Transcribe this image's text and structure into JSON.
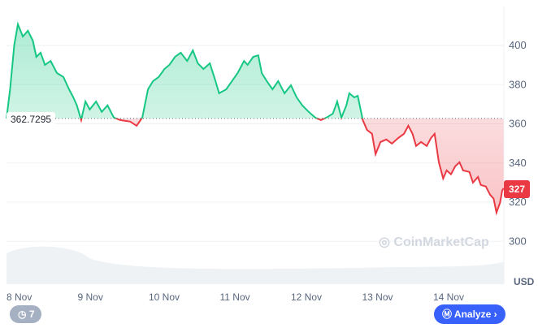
{
  "chart_data": {
    "type": "area",
    "baseline": 362.7295,
    "baseline_label": "362.7295",
    "last_price_label": "327",
    "currency": "USD",
    "ylim": [
      290,
      415
    ],
    "y_ticks": [
      "400",
      "380",
      "360",
      "340",
      "320",
      "300"
    ],
    "y_tick_values": [
      400,
      380,
      360,
      340,
      320,
      300
    ],
    "x_ticks": [
      "8 Nov",
      "9 Nov",
      "10 Nov",
      "11 Nov",
      "12 Nov",
      "13 Nov",
      "14 Nov"
    ],
    "x_tick_values": [
      8,
      9,
      10,
      11,
      12,
      13,
      14
    ],
    "xlim": [
      7.84,
      14.84
    ],
    "grid": true,
    "colors": {
      "up": "#16c784",
      "down": "#ea3943",
      "volume": "#eff2f5"
    },
    "series": [
      {
        "x": [
          7.84,
          7.89,
          7.95,
          8.0,
          8.07,
          8.14,
          8.21,
          8.26,
          8.32,
          8.38,
          8.46,
          8.55,
          8.64,
          8.72,
          8.78,
          8.83,
          8.89,
          8.95,
          9.01,
          9.1,
          9.18,
          9.26,
          9.35,
          9.44,
          9.58,
          9.67,
          9.75,
          9.83,
          9.9,
          9.98,
          10.06,
          10.13,
          10.21,
          10.29,
          10.38,
          10.46,
          10.53,
          10.61,
          10.7,
          10.78,
          10.83,
          10.93,
          11.01,
          11.09,
          11.18,
          11.23,
          11.31,
          11.38,
          11.43,
          11.5,
          11.58,
          11.66,
          11.75,
          11.84,
          11.92,
          12.0,
          12.09,
          12.18,
          12.26,
          12.34,
          12.43,
          12.49,
          12.55,
          12.62,
          12.66,
          12.73,
          12.78,
          12.85,
          12.91,
          12.98,
          13.03,
          13.1,
          13.18,
          13.26,
          13.35,
          13.43,
          13.49,
          13.55,
          13.6,
          13.67,
          13.75,
          13.81,
          13.86,
          13.92,
          13.98,
          14.03,
          14.09,
          14.15,
          14.21,
          14.26,
          14.35,
          14.4,
          14.47,
          14.51,
          14.58,
          14.64,
          14.69,
          14.73,
          14.78,
          14.81,
          14.83
        ],
        "y": [
          362.7,
          377.6,
          400.4,
          410.8,
          404.6,
          407.5,
          402.5,
          394.2,
          396.3,
          390.1,
          392.1,
          385.9,
          383.9,
          377.6,
          373.5,
          369.4,
          361.9,
          371.4,
          367.3,
          371.4,
          366.1,
          369.4,
          363.2,
          361.9,
          361.1,
          359.0,
          363.2,
          377.6,
          381.8,
          383.9,
          388.0,
          390.1,
          394.2,
          396.3,
          392.1,
          397.5,
          390.9,
          388.0,
          390.9,
          381.8,
          375.6,
          377.6,
          381.8,
          385.9,
          392.1,
          390.1,
          394.2,
          395.0,
          385.9,
          381.8,
          377.6,
          381.8,
          375.6,
          379.7,
          373.5,
          369.4,
          366.1,
          363.2,
          361.9,
          363.2,
          365.2,
          371.4,
          363.2,
          369.4,
          375.6,
          373.5,
          374.3,
          361.9,
          356.9,
          354.9,
          344.5,
          350.7,
          352.0,
          349.9,
          352.8,
          354.9,
          359.0,
          354.9,
          348.7,
          350.7,
          348.7,
          352.8,
          354.9,
          340.4,
          332.1,
          336.2,
          334.2,
          338.3,
          340.4,
          336.2,
          335.4,
          330.0,
          332.9,
          328.8,
          328.0,
          323.8,
          321.8,
          314.7,
          319.7,
          325.9,
          327.1
        ]
      }
    ]
  },
  "watermark": "CoinMarketCap",
  "controls": {
    "history_count": "7",
    "analyze_label": "Analyze"
  }
}
